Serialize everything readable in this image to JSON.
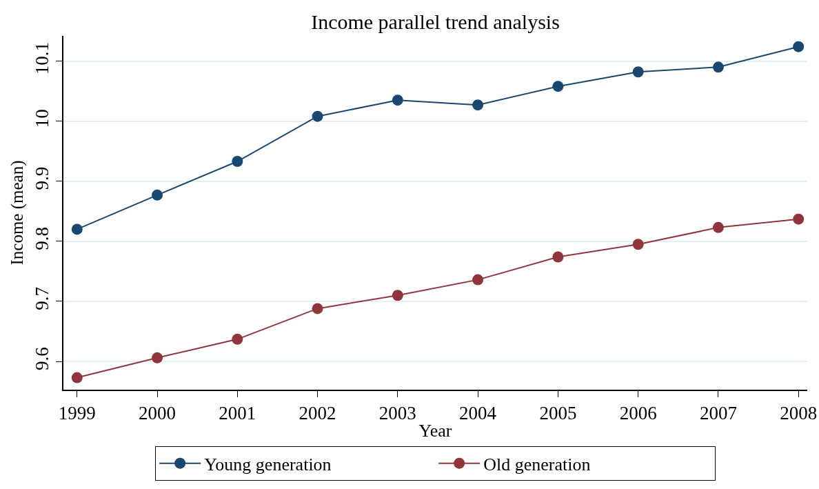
{
  "chart_data": {
    "type": "line",
    "title": "Income parallel trend analysis",
    "xlabel": "Year",
    "ylabel": "Income (mean)",
    "x": [
      1999,
      2000,
      2001,
      2002,
      2003,
      2004,
      2005,
      2006,
      2007,
      2008
    ],
    "series": [
      {
        "name": "Young generation",
        "color": "#1a476f",
        "values": [
          9.82,
          9.877,
          9.933,
          10.008,
          10.035,
          10.027,
          10.058,
          10.082,
          10.09,
          10.124
        ]
      },
      {
        "name": "Old generation",
        "color": "#90353b",
        "values": [
          9.573,
          9.606,
          9.637,
          9.688,
          9.71,
          9.736,
          9.774,
          9.795,
          9.823,
          9.837
        ]
      }
    ],
    "xlim": [
      1998.83,
      2008.11
    ],
    "ylim": [
      9.553,
      10.142
    ],
    "xticks": [
      1999,
      2000,
      2001,
      2002,
      2003,
      2004,
      2005,
      2006,
      2007,
      2008
    ],
    "yticks": [
      9.6,
      9.7,
      9.8,
      9.9,
      10,
      10.1
    ],
    "grid": "y",
    "legend": "bottom",
    "marker": "circle",
    "line_style": "solid"
  }
}
